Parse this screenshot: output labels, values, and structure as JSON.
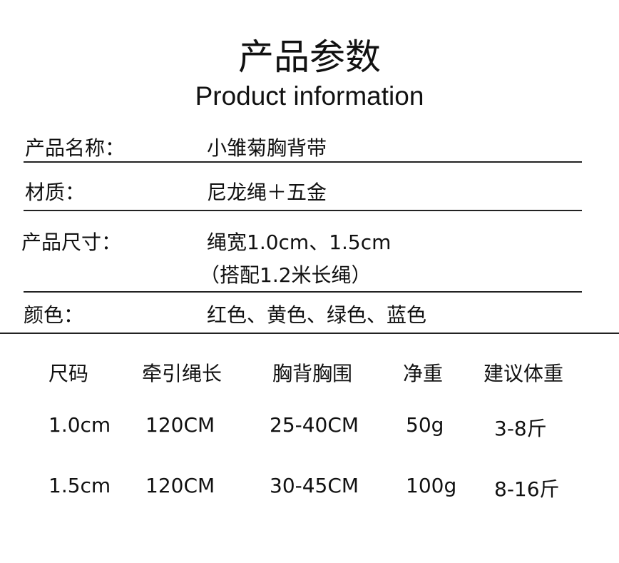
{
  "title": "产品参数",
  "subtitle": "Product  information",
  "info": [
    {
      "label": "产品名称：",
      "value": "小雏菊胸背带"
    },
    {
      "label": "材质：",
      "value": "尼龙绳＋五金"
    },
    {
      "label": "产品尺寸：",
      "value": "绳宽1.0cm、1.5cm",
      "value2": "（搭配1.2米长绳）"
    },
    {
      "label": "颜色：",
      "value": "红色、黄色、绿色、蓝色"
    }
  ],
  "table": {
    "headers": [
      "尺码",
      "牵引绳长",
      "胸背胸围",
      "净重",
      "建议体重"
    ],
    "rows": [
      [
        "1.0cm",
        "120CM",
        "25-40CM",
        "50g",
        "3-8斤"
      ],
      [
        "1.5cm",
        "120CM",
        "30-45CM",
        "100g",
        "8-16斤"
      ]
    ]
  }
}
